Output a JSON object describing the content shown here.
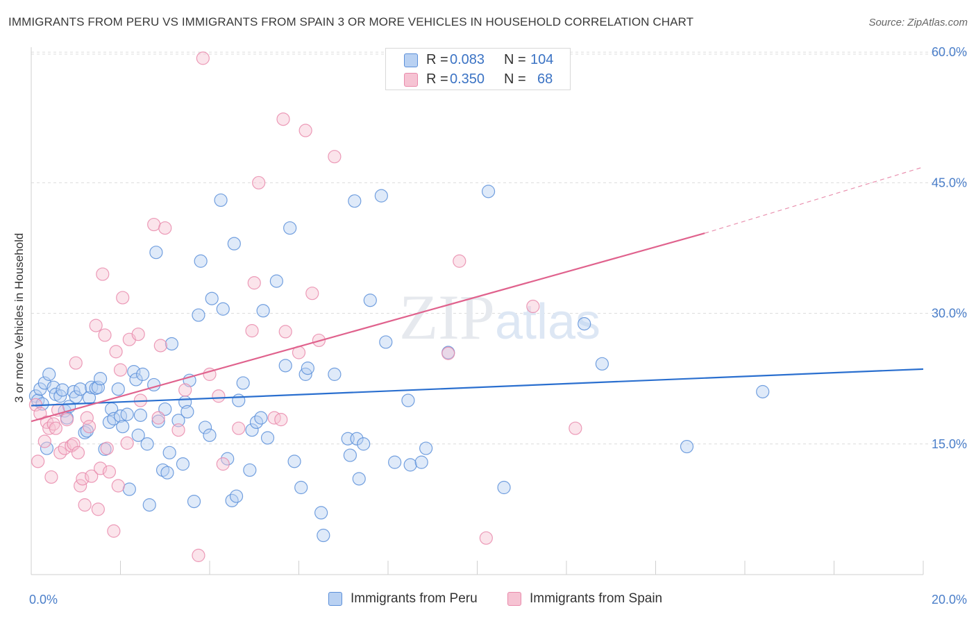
{
  "chart_data": {
    "type": "scatter",
    "title": "IMMIGRANTS FROM PERU VS IMMIGRANTS FROM SPAIN 3 OR MORE VEHICLES IN HOUSEHOLD CORRELATION CHART",
    "source": "Source: ZipAtlas.com",
    "ylabel": "3 or more Vehicles in Household",
    "xlabel": "",
    "xlim": [
      0,
      20
    ],
    "ylim": [
      0,
      62
    ],
    "x_tick_labels": [
      "0.0%",
      "20.0%"
    ],
    "y_ticks": [
      15,
      30,
      45,
      60
    ],
    "y_tick_labels": [
      "15.0%",
      "30.0%",
      "45.0%",
      "60.0%"
    ],
    "grid": true,
    "watermark": "ZIPatlas",
    "legend_position": "top-center",
    "series": [
      {
        "name": "Immigrants from Peru",
        "color": "#5b8fd9",
        "fill": "#b9d1f2",
        "line_color": "#2a6fcf",
        "R": "0.083",
        "N": "104",
        "trend": {
          "x0": 0,
          "y0": 19.4,
          "x1": 20,
          "y1": 23.6
        },
        "points": [
          [
            0.1,
            20.5
          ],
          [
            0.15,
            20.0
          ],
          [
            0.2,
            21.3
          ],
          [
            0.25,
            19.6
          ],
          [
            0.3,
            22.0
          ],
          [
            0.35,
            14.5
          ],
          [
            0.4,
            23.0
          ],
          [
            0.5,
            21.5
          ],
          [
            0.55,
            20.7
          ],
          [
            0.65,
            20.5
          ],
          [
            0.7,
            21.2
          ],
          [
            0.75,
            18.8
          ],
          [
            0.8,
            18.0
          ],
          [
            0.85,
            19.3
          ],
          [
            0.95,
            21.0
          ],
          [
            1.0,
            20.4
          ],
          [
            1.1,
            21.3
          ],
          [
            1.2,
            16.3
          ],
          [
            1.25,
            16.5
          ],
          [
            1.3,
            20.3
          ],
          [
            1.35,
            21.5
          ],
          [
            1.45,
            21.4
          ],
          [
            1.5,
            21.5
          ],
          [
            1.55,
            22.5
          ],
          [
            1.65,
            14.4
          ],
          [
            1.75,
            17.5
          ],
          [
            1.8,
            19.0
          ],
          [
            1.85,
            17.9
          ],
          [
            1.95,
            21.3
          ],
          [
            2.0,
            18.2
          ],
          [
            2.05,
            17.0
          ],
          [
            2.15,
            18.4
          ],
          [
            2.2,
            9.8
          ],
          [
            2.3,
            23.3
          ],
          [
            2.35,
            22.4
          ],
          [
            2.4,
            16.0
          ],
          [
            2.45,
            18.3
          ],
          [
            2.5,
            23.0
          ],
          [
            2.6,
            15.0
          ],
          [
            2.65,
            8.0
          ],
          [
            2.75,
            21.8
          ],
          [
            2.8,
            37.0
          ],
          [
            2.85,
            17.6
          ],
          [
            2.95,
            12.0
          ],
          [
            3.0,
            19.0
          ],
          [
            3.05,
            11.7
          ],
          [
            3.1,
            14.0
          ],
          [
            3.15,
            26.5
          ],
          [
            3.3,
            17.7
          ],
          [
            3.4,
            12.7
          ],
          [
            3.45,
            19.8
          ],
          [
            3.5,
            18.7
          ],
          [
            3.55,
            22.3
          ],
          [
            3.65,
            8.4
          ],
          [
            3.75,
            29.8
          ],
          [
            3.8,
            36.0
          ],
          [
            3.9,
            16.9
          ],
          [
            4.0,
            16.0
          ],
          [
            4.05,
            31.7
          ],
          [
            4.25,
            43.0
          ],
          [
            4.3,
            30.5
          ],
          [
            4.4,
            13.3
          ],
          [
            4.5,
            8.5
          ],
          [
            4.55,
            38.0
          ],
          [
            4.6,
            9.0
          ],
          [
            4.65,
            20.0
          ],
          [
            4.75,
            22.0
          ],
          [
            4.9,
            12.0
          ],
          [
            4.95,
            16.6
          ],
          [
            5.05,
            17.5
          ],
          [
            5.15,
            18.0
          ],
          [
            5.2,
            30.3
          ],
          [
            5.3,
            15.7
          ],
          [
            5.5,
            33.7
          ],
          [
            5.7,
            24.0
          ],
          [
            5.8,
            39.8
          ],
          [
            5.9,
            13.0
          ],
          [
            6.05,
            10.0
          ],
          [
            6.15,
            23.0
          ],
          [
            6.2,
            23.7
          ],
          [
            6.5,
            7.1
          ],
          [
            6.55,
            4.5
          ],
          [
            6.8,
            23.0
          ],
          [
            7.1,
            15.6
          ],
          [
            7.15,
            13.7
          ],
          [
            7.25,
            42.9
          ],
          [
            7.3,
            15.6
          ],
          [
            7.35,
            11.0
          ],
          [
            7.45,
            15.0
          ],
          [
            7.6,
            31.5
          ],
          [
            7.85,
            43.5
          ],
          [
            7.95,
            26.7
          ],
          [
            8.15,
            12.9
          ],
          [
            8.45,
            20.0
          ],
          [
            8.5,
            12.6
          ],
          [
            8.75,
            12.9
          ],
          [
            8.85,
            14.5
          ],
          [
            9.35,
            25.5
          ],
          [
            10.25,
            44.0
          ],
          [
            10.6,
            10.0
          ],
          [
            12.4,
            28.8
          ],
          [
            12.8,
            24.2
          ],
          [
            14.7,
            14.7
          ],
          [
            16.4,
            21.0
          ]
        ]
      },
      {
        "name": "Immigrants from Spain",
        "color": "#e98aab",
        "fill": "#f6c3d3",
        "line_color": "#e0628d",
        "R": "0.350",
        "N": "68",
        "trend": {
          "x0": 0,
          "y0": 17.6,
          "x1": 15.1,
          "y1": 39.2
        },
        "trend_dash": {
          "x0": 15.1,
          "y0": 39.2,
          "x1": 20,
          "y1": 46.8
        },
        "points": [
          [
            0.1,
            19.5
          ],
          [
            0.15,
            13.0
          ],
          [
            0.2,
            18.5
          ],
          [
            0.3,
            15.3
          ],
          [
            0.35,
            17.5
          ],
          [
            0.4,
            16.8
          ],
          [
            0.45,
            11.2
          ],
          [
            0.5,
            17.3
          ],
          [
            0.55,
            16.8
          ],
          [
            0.6,
            18.9
          ],
          [
            0.65,
            14.0
          ],
          [
            0.75,
            14.5
          ],
          [
            0.8,
            17.8
          ],
          [
            0.9,
            14.8
          ],
          [
            0.95,
            15.0
          ],
          [
            1.0,
            24.3
          ],
          [
            1.05,
            14.0
          ],
          [
            1.1,
            10.2
          ],
          [
            1.15,
            11.0
          ],
          [
            1.2,
            8.0
          ],
          [
            1.25,
            18.0
          ],
          [
            1.3,
            17.0
          ],
          [
            1.35,
            11.3
          ],
          [
            1.45,
            28.6
          ],
          [
            1.5,
            7.5
          ],
          [
            1.55,
            12.2
          ],
          [
            1.6,
            34.5
          ],
          [
            1.65,
            27.5
          ],
          [
            1.7,
            14.5
          ],
          [
            1.75,
            11.8
          ],
          [
            1.85,
            5.0
          ],
          [
            1.9,
            25.6
          ],
          [
            1.95,
            10.2
          ],
          [
            2.0,
            23.5
          ],
          [
            2.05,
            31.8
          ],
          [
            2.15,
            15.1
          ],
          [
            2.2,
            27.0
          ],
          [
            2.4,
            27.6
          ],
          [
            2.45,
            20.0
          ],
          [
            2.75,
            40.2
          ],
          [
            2.85,
            18.0
          ],
          [
            2.9,
            26.3
          ],
          [
            3.0,
            39.8
          ],
          [
            3.3,
            16.6
          ],
          [
            3.45,
            21.2
          ],
          [
            3.75,
            2.2
          ],
          [
            3.85,
            59.3
          ],
          [
            4.0,
            23.0
          ],
          [
            4.2,
            20.5
          ],
          [
            4.3,
            12.7
          ],
          [
            4.65,
            16.8
          ],
          [
            4.95,
            28.0
          ],
          [
            5.0,
            33.5
          ],
          [
            5.1,
            45.0
          ],
          [
            5.45,
            18.0
          ],
          [
            5.6,
            17.8
          ],
          [
            5.65,
            52.3
          ],
          [
            5.7,
            27.9
          ],
          [
            6.0,
            25.5
          ],
          [
            6.15,
            51.0
          ],
          [
            6.3,
            32.3
          ],
          [
            6.45,
            26.9
          ],
          [
            6.8,
            48.0
          ],
          [
            9.35,
            25.4
          ],
          [
            9.6,
            36.0
          ],
          [
            10.2,
            4.2
          ],
          [
            11.25,
            30.8
          ],
          [
            12.2,
            16.8
          ]
        ]
      }
    ]
  }
}
